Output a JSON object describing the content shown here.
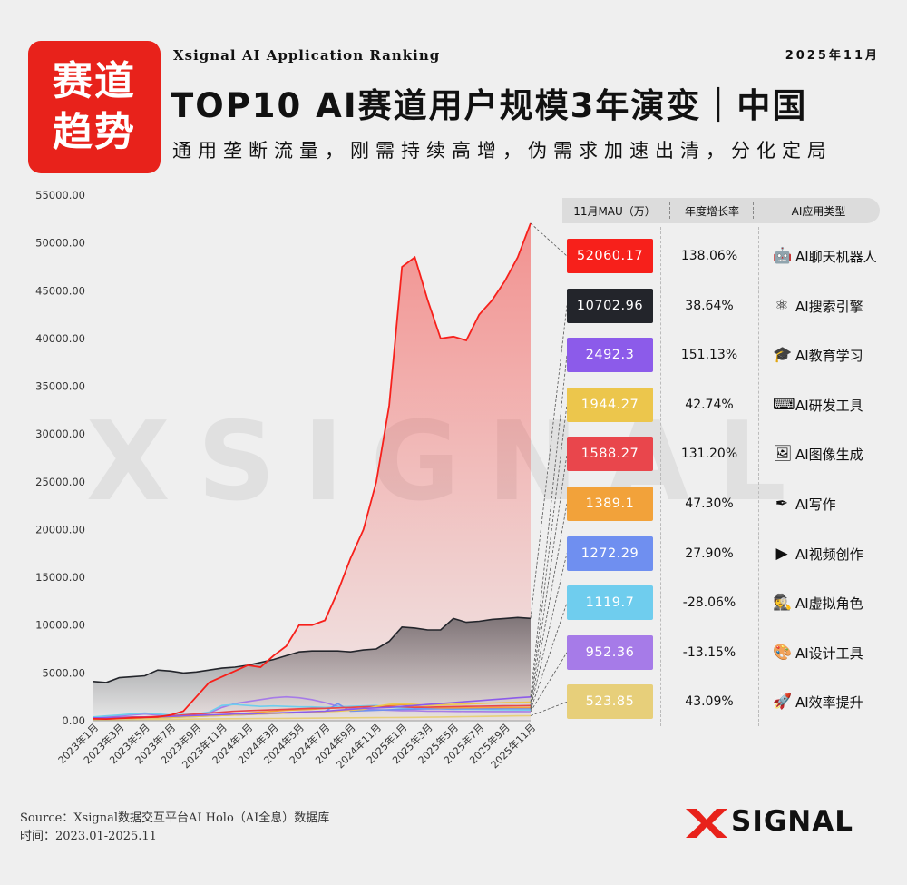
{
  "header": {
    "badge_line1": "赛道",
    "badge_line2": "趋势",
    "tagline": "Xsignal AI Application Ranking",
    "date": "2025年11月",
    "title": "TOP10 AI赛道用户规模3年演变｜中国",
    "subtitle": "通用垄断流量，刚需持续高增，伪需求加速出清，分化定局"
  },
  "watermark": "XSIGNAL",
  "table_header": {
    "mau": "11月MAU（万）",
    "growth": "年度增长率",
    "category": "AI应用类型"
  },
  "rows": [
    {
      "mau": "52060.17",
      "growth": "138.06%",
      "icon": "robot-icon",
      "glyph": "🤖",
      "label": "AI聊天机器人",
      "color": "#f7201b"
    },
    {
      "mau": "10702.96",
      "growth": "38.64%",
      "icon": "atom-icon",
      "glyph": "⚛",
      "label": "AI搜索引擎",
      "color": "#23252b"
    },
    {
      "mau": "2492.3",
      "growth": "151.13%",
      "icon": "graduation-cap-icon",
      "glyph": "🎓",
      "label": "AI教育学习",
      "color": "#8c5bea"
    },
    {
      "mau": "1944.27",
      "growth": "42.74%",
      "icon": "code-icon",
      "glyph": "⌨",
      "label": "AI研发工具",
      "color": "#ecc64c"
    },
    {
      "mau": "1588.27",
      "growth": "131.20%",
      "icon": "image-icon",
      "glyph": "🖼",
      "label": "AI图像生成",
      "color": "#e9464c"
    },
    {
      "mau": "1389.1",
      "growth": "47.30%",
      "icon": "quill-icon",
      "glyph": "✒",
      "label": "AI写作",
      "color": "#f2a23a"
    },
    {
      "mau": "1272.29",
      "growth": "27.90%",
      "icon": "video-icon",
      "glyph": "▶",
      "label": "AI视频创作",
      "color": "#6f8ff0"
    },
    {
      "mau": "1119.7",
      "growth": "-28.06%",
      "icon": "spy-icon",
      "glyph": "🕵",
      "label": "AI虚拟角色",
      "color": "#6fcdee"
    },
    {
      "mau": "952.36",
      "growth": "-13.15%",
      "icon": "palette-icon",
      "glyph": "🎨",
      "label": "AI设计工具",
      "color": "#a67be8"
    },
    {
      "mau": "523.85",
      "growth": "43.09%",
      "icon": "rocket-icon",
      "glyph": "🚀",
      "label": "AI效率提升",
      "color": "#e7cf7a"
    }
  ],
  "footer": {
    "source": "Source：Xsignal数据交互平台AI Holo（AI全息）数据库",
    "period": "时间：2023.01-2025.11",
    "logo_text": "SIGNAL"
  },
  "chart_data": {
    "type": "area",
    "ylim": [
      0,
      55000
    ],
    "yticks": [
      "0.00",
      "5000.00",
      "10000.00",
      "15000.00",
      "20000.00",
      "25000.00",
      "30000.00",
      "35000.00",
      "40000.00",
      "45000.00",
      "50000.00",
      "55000.00"
    ],
    "x": [
      "2023年1月",
      "2023年2月",
      "2023年3月",
      "2023年4月",
      "2023年5月",
      "2023年6月",
      "2023年7月",
      "2023年8月",
      "2023年9月",
      "2023年10月",
      "2023年11月",
      "2023年12月",
      "2024年1月",
      "2024年2月",
      "2024年3月",
      "2024年4月",
      "2024年5月",
      "2024年6月",
      "2024年7月",
      "2024年8月",
      "2024年9月",
      "2024年10月",
      "2024年11月",
      "2024年12月",
      "2025年1月",
      "2025年2月",
      "2025年3月",
      "2025年4月",
      "2025年5月",
      "2025年6月",
      "2025年7月",
      "2025年8月",
      "2025年9月",
      "2025年10月",
      "2025年11月"
    ],
    "x_tick_labels": [
      "2023年1月",
      "2023年3月",
      "2023年5月",
      "2023年7月",
      "2023年9月",
      "2023年11月",
      "2024年1月",
      "2024年3月",
      "2024年5月",
      "2024年7月",
      "2024年9月",
      "2024年11月",
      "2025年1月",
      "2025年3月",
      "2025年5月",
      "2025年7月",
      "2025年9月",
      "2025年11月"
    ],
    "series": [
      {
        "name": "AI聊天机器人",
        "color": "#f7201b",
        "values": [
          200,
          180,
          250,
          300,
          350,
          400,
          600,
          1000,
          2500,
          4000,
          4600,
          5200,
          5800,
          5600,
          6800,
          7800,
          10000,
          10000,
          10500,
          13500,
          17000,
          20000,
          25000,
          33000,
          47500,
          48500,
          44000,
          40000,
          40200,
          39800,
          42500,
          44000,
          46000,
          48500,
          52060.17
        ]
      },
      {
        "name": "AI搜索引擎",
        "color": "#23252b",
        "values": [
          4100,
          4000,
          4500,
          4600,
          4700,
          5300,
          5200,
          5000,
          5100,
          5300,
          5500,
          5600,
          5800,
          6100,
          6400,
          6800,
          7200,
          7300,
          7300,
          7300,
          7200,
          7400,
          7500,
          8300,
          9800,
          9700,
          9500,
          9500,
          10700,
          10300,
          10400,
          10600,
          10700,
          10800,
          10702.96
        ]
      },
      {
        "name": "AI教育学习",
        "color": "#8c5bea",
        "values": [
          300,
          300,
          350,
          350,
          400,
          400,
          450,
          500,
          550,
          600,
          650,
          700,
          700,
          750,
          800,
          850,
          900,
          950,
          1000,
          1100,
          1200,
          1300,
          1350,
          1400,
          1500,
          1600,
          1700,
          1800,
          1900,
          2000,
          2100,
          2200,
          2300,
          2400,
          2492.3
        ]
      },
      {
        "name": "AI研发工具",
        "color": "#ecc64c",
        "values": [
          200,
          200,
          250,
          250,
          300,
          300,
          350,
          400,
          450,
          500,
          550,
          600,
          650,
          700,
          750,
          800,
          850,
          900,
          950,
          1000,
          1100,
          1200,
          1500,
          1700,
          1800,
          1700,
          1600,
          1650,
          1700,
          1750,
          1800,
          1850,
          1900,
          1920,
          1944.27
        ]
      },
      {
        "name": "AI图像生成",
        "color": "#e9464c",
        "values": [
          300,
          300,
          350,
          400,
          400,
          450,
          500,
          600,
          700,
          800,
          900,
          1000,
          1050,
          1100,
          1150,
          1200,
          1250,
          1300,
          1300,
          1350,
          1400,
          1450,
          1500,
          1500,
          1450,
          1400,
          1420,
          1450,
          1480,
          1500,
          1520,
          1540,
          1560,
          1570,
          1588.27
        ]
      },
      {
        "name": "AI写作",
        "color": "#f2a23a",
        "values": [
          300,
          300,
          300,
          350,
          350,
          400,
          400,
          450,
          500,
          550,
          600,
          700,
          800,
          900,
          1000,
          1100,
          1150,
          1200,
          1300,
          1350,
          1400,
          1450,
          1500,
          1600,
          1700,
          1500,
          1400,
          1350,
          1350,
          1360,
          1370,
          1380,
          1385,
          1388,
          1389.1
        ]
      },
      {
        "name": "AI视频创作",
        "color": "#6f8ff0",
        "values": [
          200,
          200,
          250,
          250,
          300,
          300,
          350,
          400,
          450,
          500,
          550,
          600,
          650,
          700,
          750,
          800,
          850,
          900,
          950,
          1800,
          1000,
          1050,
          1100,
          1150,
          1200,
          1220,
          1240,
          1250,
          1255,
          1260,
          1265,
          1268,
          1270,
          1271,
          1272.29
        ]
      },
      {
        "name": "AI虚拟角色",
        "color": "#6fcdee",
        "values": [
          400,
          500,
          600,
          700,
          800,
          700,
          600,
          650,
          700,
          900,
          1600,
          1700,
          1600,
          1500,
          1550,
          1500,
          1450,
          1450,
          1400,
          1450,
          1500,
          1550,
          1600,
          1400,
          1350,
          1300,
          1250,
          1250,
          1200,
          1200,
          1180,
          1160,
          1140,
          1130,
          1119.7
        ]
      },
      {
        "name": "AI设计工具",
        "color": "#a67be8",
        "values": [
          300,
          400,
          500,
          600,
          700,
          600,
          500,
          500,
          600,
          800,
          1400,
          1800,
          2000,
          2200,
          2400,
          2500,
          2400,
          2200,
          1900,
          1500,
          1300,
          1200,
          1150,
          1100,
          1050,
          1050,
          1000,
          1000,
          980,
          970,
          965,
          960,
          958,
          955,
          952.36
        ]
      },
      {
        "name": "AI效率提升",
        "color": "#e7cf7a",
        "values": [
          100,
          110,
          120,
          130,
          140,
          150,
          160,
          170,
          180,
          190,
          200,
          210,
          220,
          230,
          240,
          250,
          260,
          270,
          280,
          290,
          300,
          310,
          320,
          330,
          340,
          350,
          370,
          390,
          410,
          430,
          450,
          470,
          490,
          510,
          523.85
        ]
      }
    ]
  }
}
